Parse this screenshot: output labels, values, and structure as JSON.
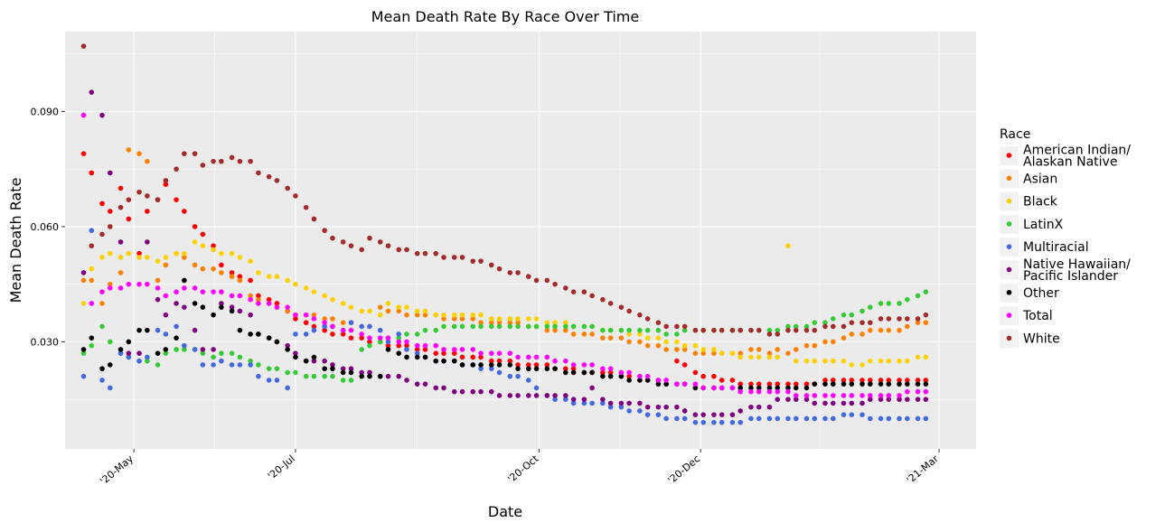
{
  "chart_data": {
    "type": "scatter",
    "title": "Mean Death Rate By Race Over Time",
    "xlabel": "Date",
    "ylabel": "Mean Death Rate",
    "x_axis_type": "date",
    "x_range": [
      "2020-04-05",
      "2021-03-15"
    ],
    "ylim": [
      0.0021,
      0.1108
    ],
    "x_ticks": [
      {
        "date": "2020-05-01",
        "label": "'20-May"
      },
      {
        "date": "2020-07-01",
        "label": "'20-Jul"
      },
      {
        "date": "2020-10-01",
        "label": "'20-Oct"
      },
      {
        "date": "2020-12-01",
        "label": "'20-Dec"
      },
      {
        "date": "2021-03-01",
        "label": "'21-Mar"
      }
    ],
    "y_ticks": [
      {
        "value": 0.03,
        "label": "0.030"
      },
      {
        "value": 0.06,
        "label": "0.060"
      },
      {
        "value": 0.09,
        "label": "0.090"
      }
    ],
    "grid": true,
    "legend": {
      "title": "Race",
      "placement": "right"
    },
    "dates": [
      "2020-04-12",
      "2020-04-15",
      "2020-04-19",
      "2020-04-22",
      "2020-04-26",
      "2020-04-29",
      "2020-05-03",
      "2020-05-06",
      "2020-05-10",
      "2020-05-13",
      "2020-05-17",
      "2020-05-20",
      "2020-05-24",
      "2020-05-27",
      "2020-05-31",
      "2020-06-03",
      "2020-06-07",
      "2020-06-10",
      "2020-06-14",
      "2020-06-17",
      "2020-06-21",
      "2020-06-24",
      "2020-06-28",
      "2020-07-01",
      "2020-07-05",
      "2020-07-08",
      "2020-07-12",
      "2020-07-15",
      "2020-07-19",
      "2020-07-22",
      "2020-07-26",
      "2020-07-29",
      "2020-08-02",
      "2020-08-05",
      "2020-08-09",
      "2020-08-12",
      "2020-08-16",
      "2020-08-19",
      "2020-08-23",
      "2020-08-26",
      "2020-08-30",
      "2020-09-02",
      "2020-09-06",
      "2020-09-09",
      "2020-09-13",
      "2020-09-16",
      "2020-09-20",
      "2020-09-23",
      "2020-09-27",
      "2020-09-30",
      "2020-10-04",
      "2020-10-07",
      "2020-10-11",
      "2020-10-14",
      "2020-10-18",
      "2020-10-21",
      "2020-10-25",
      "2020-10-28",
      "2020-11-01",
      "2020-11-04",
      "2020-11-08",
      "2020-11-11",
      "2020-11-15",
      "2020-11-18",
      "2020-11-22",
      "2020-11-25",
      "2020-11-29",
      "2020-12-02",
      "2020-12-06",
      "2020-12-09",
      "2020-12-13",
      "2020-12-16",
      "2020-12-20",
      "2020-12-23",
      "2020-12-27",
      "2020-12-30",
      "2021-01-03",
      "2021-01-06",
      "2021-01-10",
      "2021-01-13",
      "2021-01-17",
      "2021-01-20",
      "2021-01-24",
      "2021-01-27",
      "2021-01-31",
      "2021-02-03",
      "2021-02-07",
      "2021-02-10",
      "2021-02-14",
      "2021-02-17",
      "2021-02-21",
      "2021-02-24"
    ],
    "series": [
      {
        "name": "American Indian/\nAlaskan Native",
        "color": "#ff0000",
        "values": [
          0.079,
          0.074,
          0.066,
          0.064,
          0.07,
          0.062,
          0.053,
          0.064,
          0.067,
          0.071,
          0.067,
          0.064,
          0.06,
          0.058,
          0.055,
          0.05,
          0.048,
          0.047,
          0.046,
          0.042,
          0.041,
          0.04,
          0.038,
          0.036,
          0.035,
          0.034,
          0.033,
          0.032,
          0.032,
          0.031,
          0.031,
          0.03,
          0.03,
          0.029,
          0.029,
          0.029,
          0.028,
          0.028,
          0.027,
          0.027,
          0.027,
          0.026,
          0.026,
          0.026,
          0.025,
          0.025,
          0.025,
          0.024,
          0.024,
          0.024,
          0.024,
          0.023,
          0.023,
          0.023,
          0.022,
          0.022,
          0.022,
          0.022,
          0.021,
          0.021,
          0.02,
          0.02,
          0.02,
          0.019,
          0.025,
          0.024,
          0.022,
          0.021,
          0.021,
          0.02,
          0.02,
          0.019,
          0.019,
          0.019,
          0.019,
          0.019,
          0.019,
          0.019,
          0.019,
          0.019,
          0.02,
          0.02,
          0.02,
          0.02,
          0.02,
          0.02,
          0.02,
          0.02,
          0.02,
          0.02,
          0.02,
          0.02
        ]
      },
      {
        "name": "Asian",
        "color": "#ff8000",
        "values": [
          0.046,
          0.046,
          0.04,
          0.045,
          0.048,
          0.08,
          0.079,
          0.077,
          0.046,
          0.05,
          0.053,
          0.052,
          0.05,
          0.049,
          0.049,
          0.048,
          0.047,
          0.046,
          0.042,
          0.041,
          0.04,
          0.039,
          0.038,
          0.037,
          0.037,
          0.037,
          0.036,
          0.036,
          0.035,
          0.035,
          0.034,
          0.034,
          0.039,
          0.038,
          0.038,
          0.037,
          0.037,
          0.037,
          0.037,
          0.036,
          0.036,
          0.036,
          0.036,
          0.035,
          0.035,
          0.035,
          0.035,
          0.035,
          0.034,
          0.034,
          0.033,
          0.033,
          0.033,
          0.032,
          0.032,
          0.032,
          0.031,
          0.031,
          0.031,
          0.03,
          0.03,
          0.029,
          0.029,
          0.028,
          0.028,
          0.028,
          0.027,
          0.027,
          0.027,
          0.027,
          0.027,
          0.027,
          0.028,
          0.028,
          0.027,
          0.028,
          0.027,
          0.028,
          0.029,
          0.029,
          0.03,
          0.03,
          0.031,
          0.032,
          0.032,
          0.033,
          0.033,
          0.033,
          0.033,
          0.034,
          0.035,
          0.035
        ]
      },
      {
        "name": "Black",
        "color": "#ffd000",
        "values": [
          0.04,
          0.049,
          0.052,
          0.053,
          0.052,
          0.053,
          0.052,
          0.052,
          0.051,
          0.052,
          0.053,
          0.053,
          0.056,
          0.055,
          0.054,
          0.053,
          0.053,
          0.052,
          0.051,
          0.048,
          0.047,
          0.047,
          0.046,
          0.045,
          0.044,
          0.043,
          0.042,
          0.041,
          0.04,
          0.039,
          0.038,
          0.038,
          0.037,
          0.04,
          0.039,
          0.039,
          0.038,
          0.038,
          0.037,
          0.037,
          0.037,
          0.037,
          0.037,
          0.037,
          0.036,
          0.036,
          0.036,
          0.036,
          0.036,
          0.036,
          0.035,
          0.035,
          0.035,
          0.034,
          0.034,
          0.034,
          0.033,
          0.033,
          0.033,
          0.032,
          0.032,
          0.031,
          0.031,
          0.03,
          0.03,
          0.029,
          0.029,
          0.028,
          0.028,
          0.027,
          0.027,
          0.026,
          0.026,
          0.026,
          0.026,
          0.026,
          0.055,
          0.025,
          0.025,
          0.025,
          0.025,
          0.025,
          0.025,
          0.024,
          0.024,
          0.025,
          0.025,
          0.025,
          0.025,
          0.025,
          0.026,
          0.026
        ]
      },
      {
        "name": "LatinX",
        "color": "#33cc33",
        "values": [
          0.027,
          0.029,
          0.034,
          0.03,
          0.027,
          0.026,
          0.025,
          0.025,
          0.024,
          0.027,
          0.028,
          0.028,
          0.028,
          0.027,
          0.026,
          0.027,
          0.027,
          0.026,
          0.025,
          0.024,
          0.023,
          0.023,
          0.022,
          0.022,
          0.021,
          0.021,
          0.021,
          0.021,
          0.02,
          0.02,
          0.028,
          0.029,
          0.03,
          0.031,
          0.031,
          0.032,
          0.032,
          0.033,
          0.033,
          0.034,
          0.034,
          0.034,
          0.034,
          0.034,
          0.034,
          0.034,
          0.034,
          0.034,
          0.034,
          0.034,
          0.034,
          0.034,
          0.034,
          0.034,
          0.034,
          0.034,
          0.033,
          0.033,
          0.033,
          0.033,
          0.033,
          0.033,
          0.033,
          0.032,
          0.032,
          0.033,
          0.033,
          0.033,
          0.033,
          0.033,
          0.033,
          0.033,
          0.033,
          0.033,
          0.033,
          0.033,
          0.034,
          0.034,
          0.034,
          0.035,
          0.035,
          0.036,
          0.037,
          0.037,
          0.038,
          0.039,
          0.04,
          0.04,
          0.04,
          0.041,
          0.042,
          0.043
        ]
      },
      {
        "name": "Multiracial",
        "color": "#4169e1",
        "values": [
          0.021,
          0.059,
          0.02,
          0.018,
          0.027,
          0.026,
          0.025,
          0.026,
          0.033,
          0.032,
          0.034,
          0.029,
          0.028,
          0.024,
          0.024,
          0.025,
          0.024,
          0.024,
          0.024,
          0.021,
          0.02,
          0.02,
          0.018,
          0.032,
          0.032,
          0.033,
          0.034,
          0.034,
          0.033,
          0.035,
          0.034,
          0.034,
          0.033,
          0.03,
          0.032,
          0.028,
          0.027,
          0.026,
          0.025,
          0.025,
          0.025,
          0.024,
          0.024,
          0.023,
          0.023,
          0.022,
          0.021,
          0.021,
          0.02,
          0.018,
          0.016,
          0.015,
          0.015,
          0.014,
          0.014,
          0.014,
          0.014,
          0.013,
          0.013,
          0.012,
          0.012,
          0.011,
          0.011,
          0.01,
          0.01,
          0.01,
          0.009,
          0.009,
          0.009,
          0.009,
          0.009,
          0.009,
          0.01,
          0.01,
          0.01,
          0.01,
          0.01,
          0.01,
          0.01,
          0.01,
          0.01,
          0.01,
          0.011,
          0.011,
          0.011,
          0.01,
          0.01,
          0.01,
          0.01,
          0.01,
          0.01,
          0.01
        ]
      },
      {
        "name": "Native Hawaiian/\nPacific Islander",
        "color": "#800080",
        "values": [
          0.048,
          0.095,
          0.089,
          0.074,
          0.056,
          0.027,
          0.027,
          0.056,
          0.041,
          0.037,
          0.04,
          0.039,
          0.033,
          0.028,
          0.028,
          0.04,
          0.039,
          0.038,
          0.037,
          0.032,
          0.031,
          0.03,
          0.029,
          0.027,
          0.025,
          0.025,
          0.025,
          0.024,
          0.023,
          0.023,
          0.022,
          0.022,
          0.021,
          0.021,
          0.021,
          0.02,
          0.019,
          0.019,
          0.018,
          0.018,
          0.017,
          0.017,
          0.017,
          0.017,
          0.017,
          0.016,
          0.016,
          0.016,
          0.016,
          0.016,
          0.016,
          0.016,
          0.016,
          0.015,
          0.015,
          0.018,
          0.015,
          0.014,
          0.014,
          0.014,
          0.014,
          0.013,
          0.013,
          0.013,
          0.013,
          0.012,
          0.011,
          0.011,
          0.011,
          0.011,
          0.011,
          0.012,
          0.013,
          0.013,
          0.013,
          0.015,
          0.015,
          0.015,
          0.015,
          0.014,
          0.014,
          0.014,
          0.014,
          0.014,
          0.014,
          0.015,
          0.015,
          0.015,
          0.015,
          0.015,
          0.015,
          0.015
        ]
      },
      {
        "name": "Other",
        "color": "#000000",
        "values": [
          0.028,
          0.031,
          0.023,
          0.024,
          0.028,
          0.03,
          0.033,
          0.033,
          0.027,
          0.028,
          0.031,
          0.046,
          0.04,
          0.039,
          0.037,
          0.039,
          0.038,
          0.033,
          0.032,
          0.032,
          0.031,
          0.03,
          0.028,
          0.026,
          0.025,
          0.026,
          0.023,
          0.023,
          0.022,
          0.022,
          0.021,
          0.021,
          0.021,
          0.028,
          0.027,
          0.026,
          0.026,
          0.026,
          0.025,
          0.025,
          0.025,
          0.024,
          0.024,
          0.024,
          0.024,
          0.024,
          0.024,
          0.023,
          0.023,
          0.023,
          0.023,
          0.023,
          0.022,
          0.022,
          0.022,
          0.022,
          0.021,
          0.021,
          0.021,
          0.02,
          0.02,
          0.02,
          0.019,
          0.019,
          0.019,
          0.019,
          0.018,
          0.018,
          0.018,
          0.018,
          0.018,
          0.018,
          0.018,
          0.018,
          0.018,
          0.018,
          0.018,
          0.018,
          0.018,
          0.019,
          0.019,
          0.019,
          0.019,
          0.019,
          0.019,
          0.019,
          0.019,
          0.019,
          0.019,
          0.019,
          0.019,
          0.019
        ]
      },
      {
        "name": "Total",
        "color": "#ff00ff",
        "values": [
          0.089,
          0.04,
          0.043,
          0.044,
          0.044,
          0.045,
          0.045,
          0.045,
          0.044,
          0.042,
          0.043,
          0.044,
          0.044,
          0.043,
          0.043,
          0.043,
          0.042,
          0.042,
          0.041,
          0.04,
          0.04,
          0.039,
          0.039,
          0.037,
          0.037,
          0.036,
          0.035,
          0.034,
          0.033,
          0.033,
          0.032,
          0.031,
          0.031,
          0.031,
          0.03,
          0.03,
          0.029,
          0.029,
          0.029,
          0.028,
          0.028,
          0.028,
          0.028,
          0.027,
          0.027,
          0.027,
          0.027,
          0.026,
          0.026,
          0.026,
          0.026,
          0.025,
          0.025,
          0.024,
          0.024,
          0.024,
          0.023,
          0.023,
          0.022,
          0.022,
          0.021,
          0.021,
          0.02,
          0.02,
          0.019,
          0.019,
          0.019,
          0.018,
          0.018,
          0.018,
          0.018,
          0.017,
          0.017,
          0.017,
          0.017,
          0.017,
          0.017,
          0.016,
          0.016,
          0.016,
          0.016,
          0.016,
          0.016,
          0.016,
          0.016,
          0.016,
          0.016,
          0.016,
          0.016,
          0.017,
          0.017,
          0.017
        ]
      },
      {
        "name": "White",
        "color": "#a52a2a",
        "values": [
          0.107,
          0.055,
          0.058,
          0.06,
          0.065,
          0.067,
          0.069,
          0.068,
          0.067,
          0.072,
          0.075,
          0.079,
          0.079,
          0.076,
          0.077,
          0.077,
          0.078,
          0.077,
          0.077,
          0.074,
          0.073,
          0.072,
          0.07,
          0.068,
          0.065,
          0.062,
          0.059,
          0.057,
          0.056,
          0.055,
          0.054,
          0.057,
          0.056,
          0.055,
          0.054,
          0.054,
          0.053,
          0.053,
          0.053,
          0.052,
          0.052,
          0.052,
          0.051,
          0.051,
          0.05,
          0.049,
          0.048,
          0.048,
          0.047,
          0.046,
          0.046,
          0.045,
          0.044,
          0.043,
          0.043,
          0.042,
          0.041,
          0.04,
          0.039,
          0.038,
          0.037,
          0.036,
          0.035,
          0.034,
          0.034,
          0.034,
          0.033,
          0.033,
          0.033,
          0.033,
          0.033,
          0.033,
          0.033,
          0.033,
          0.032,
          0.032,
          0.033,
          0.033,
          0.033,
          0.033,
          0.034,
          0.034,
          0.034,
          0.035,
          0.035,
          0.035,
          0.036,
          0.036,
          0.036,
          0.036,
          0.036,
          0.037
        ]
      }
    ]
  }
}
